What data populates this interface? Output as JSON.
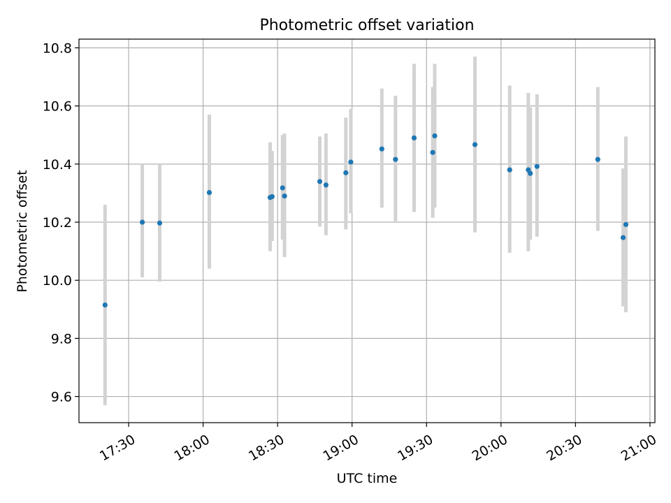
{
  "chart_data": {
    "type": "scatter",
    "title": "Photometric offset variation",
    "xlabel": "UTC time",
    "ylabel": "Photometric offset",
    "xlim": [
      "17:10",
      "21:02"
    ],
    "ylim": [
      9.51,
      10.83
    ],
    "x_ticks": [
      "17:30",
      "18:00",
      "18:30",
      "19:00",
      "19:30",
      "20:00",
      "20:30",
      "21:00"
    ],
    "y_ticks": [
      "9.6",
      "9.8",
      "10.0",
      "10.2",
      "10.4",
      "10.6",
      "10.8"
    ],
    "grid": true,
    "point_color": "#1f77b4",
    "errorbar_color": "#d3d3d3",
    "points": [
      {
        "x": "17:20.5",
        "y": 9.915,
        "ylo": 9.57,
        "yhi": 10.26
      },
      {
        "x": "17:35.5",
        "y": 10.2,
        "ylo": 10.01,
        "yhi": 10.4
      },
      {
        "x": "17:42.5",
        "y": 10.197,
        "ylo": 9.995,
        "yhi": 10.4
      },
      {
        "x": "18:02.5",
        "y": 10.302,
        "ylo": 10.04,
        "yhi": 10.57
      },
      {
        "x": "18:27.0",
        "y": 10.285,
        "ylo": 10.1,
        "yhi": 10.475
      },
      {
        "x": "18:27.8",
        "y": 10.288,
        "ylo": 10.135,
        "yhi": 10.445
      },
      {
        "x": "18:32.0",
        "y": 10.318,
        "ylo": 10.14,
        "yhi": 10.5
      },
      {
        "x": "18:32.8",
        "y": 10.29,
        "ylo": 10.08,
        "yhi": 10.505
      },
      {
        "x": "18:47.0",
        "y": 10.34,
        "ylo": 10.185,
        "yhi": 10.495
      },
      {
        "x": "18:49.5",
        "y": 10.328,
        "ylo": 10.155,
        "yhi": 10.505
      },
      {
        "x": "18:57.5",
        "y": 10.37,
        "ylo": 10.175,
        "yhi": 10.56
      },
      {
        "x": "18:59.5",
        "y": 10.407,
        "ylo": 10.23,
        "yhi": 10.59
      },
      {
        "x": "19:12.0",
        "y": 10.452,
        "ylo": 10.25,
        "yhi": 10.66
      },
      {
        "x": "19:17.5",
        "y": 10.416,
        "ylo": 10.2,
        "yhi": 10.635
      },
      {
        "x": "19:25.0",
        "y": 10.49,
        "ylo": 10.235,
        "yhi": 10.745
      },
      {
        "x": "19:32.5",
        "y": 10.44,
        "ylo": 10.215,
        "yhi": 10.665
      },
      {
        "x": "19:33.3",
        "y": 10.497,
        "ylo": 10.25,
        "yhi": 10.745
      },
      {
        "x": "19:49.5",
        "y": 10.467,
        "ylo": 10.165,
        "yhi": 10.77
      },
      {
        "x": "20:03.5",
        "y": 10.38,
        "ylo": 10.095,
        "yhi": 10.67
      },
      {
        "x": "20:11.0",
        "y": 10.38,
        "ylo": 10.1,
        "yhi": 10.645
      },
      {
        "x": "20:11.8",
        "y": 10.368,
        "ylo": 10.14,
        "yhi": 10.595
      },
      {
        "x": "20:14.5",
        "y": 10.392,
        "ylo": 10.15,
        "yhi": 10.64
      },
      {
        "x": "20:39.0",
        "y": 10.416,
        "ylo": 10.17,
        "yhi": 10.665
      },
      {
        "x": "20:49.2",
        "y": 10.147,
        "ylo": 9.91,
        "yhi": 10.385
      },
      {
        "x": "20:50.3",
        "y": 10.192,
        "ylo": 9.89,
        "yhi": 10.495
      }
    ]
  }
}
